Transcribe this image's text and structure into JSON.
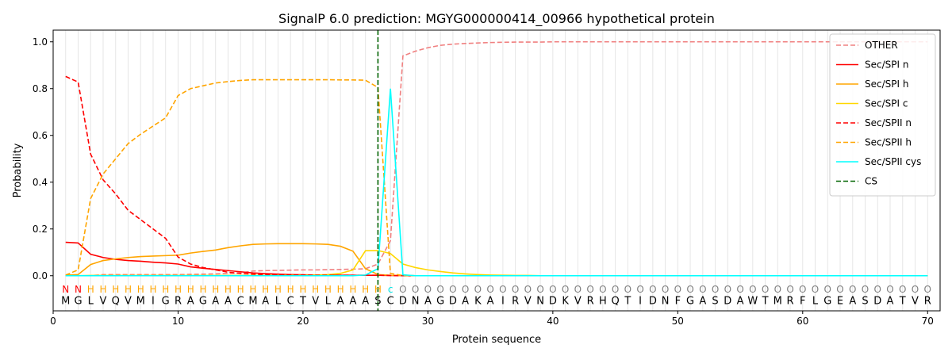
{
  "chart_data": {
    "type": "line",
    "title": "SignalP 6.0 prediction: MGYG000000414_00966 hypothetical protein",
    "xlabel": "Protein sequence",
    "ylabel": "Probability",
    "xlim": [
      0,
      71
    ],
    "ylim": [
      -0.15,
      1.05
    ],
    "x_ticks": [
      0,
      10,
      20,
      30,
      40,
      50,
      60,
      70
    ],
    "y_ticks": [
      0.0,
      0.2,
      0.4,
      0.6,
      0.8,
      1.0
    ],
    "x_tick_labels": [
      "0",
      "10",
      "20",
      "30",
      "40",
      "50",
      "60",
      "70"
    ],
    "y_tick_labels": [
      "0.0",
      "0.2",
      "0.4",
      "0.6",
      "0.8",
      "1.0"
    ],
    "grid": "vertical lines at each residue position",
    "legend_position": "top-right",
    "cleavage_site_x": 26,
    "sequence": "MGLVQVMIGRAGAACMALCTVLAAASCDNAGDAKAIRVNDKVRHQTIDNFGASDAWTMRFLGEASDATVR",
    "region_labels": "NNHHHHHHHHHHHHHHHHHHHHHHHHcOOOOOOOOOOOOOOOOOOOOOOOOOOOOOOOOOOOOOOOOOOOO",
    "region_colors": {
      "N": "#ff0000",
      "H": "#ffa500",
      "c": "#00e5e5",
      "O": "#808080"
    },
    "series": [
      {
        "name": "OTHER",
        "color": "#f08080",
        "dash": "dashed",
        "values": [
          0.0,
          0.0,
          0.0,
          0.005,
          0.005,
          0.005,
          0.005,
          0.005,
          0.005,
          0.005,
          0.006,
          0.007,
          0.008,
          0.01,
          0.012,
          0.02,
          0.022,
          0.023,
          0.024,
          0.025,
          0.025,
          0.026,
          0.027,
          0.028,
          0.03,
          0.05,
          0.15,
          0.94,
          0.96,
          0.975,
          0.985,
          0.99,
          0.993,
          0.995,
          0.997,
          0.998,
          0.999,
          0.999,
          0.999,
          1.0,
          1.0,
          1.0,
          1.0,
          1.0,
          1.0,
          1.0,
          1.0,
          1.0,
          1.0,
          1.0,
          1.0,
          1.0,
          1.0,
          1.0,
          1.0,
          1.0,
          1.0,
          1.0,
          1.0,
          1.0,
          1.0,
          1.0,
          1.0,
          1.0,
          1.0,
          1.0,
          1.0,
          1.0,
          1.0,
          1.0
        ]
      },
      {
        "name": "Sec/SPI n",
        "color": "#ff0000",
        "dash": "solid",
        "values": [
          0.143,
          0.14,
          0.092,
          0.078,
          0.07,
          0.065,
          0.062,
          0.058,
          0.055,
          0.05,
          0.038,
          0.032,
          0.027,
          0.022,
          0.017,
          0.012,
          0.009,
          0.007,
          0.005,
          0.004,
          0.003,
          0.003,
          0.002,
          0.002,
          0.002,
          0.002,
          0.001,
          0.001,
          0.0,
          0.0,
          0.0,
          0.0,
          0.0,
          0.0,
          0.0,
          0.0,
          0.0,
          0.0,
          0.0,
          0.0,
          0.0,
          0.0,
          0.0,
          0.0,
          0.0,
          0.0,
          0.0,
          0.0,
          0.0,
          0.0,
          0.0,
          0.0,
          0.0,
          0.0,
          0.0,
          0.0,
          0.0,
          0.0,
          0.0,
          0.0,
          0.0,
          0.0,
          0.0,
          0.0,
          0.0,
          0.0,
          0.0,
          0.0,
          0.0,
          0.0
        ]
      },
      {
        "name": "Sec/SPI h",
        "color": "#ffa500",
        "dash": "solid",
        "values": [
          0.002,
          0.005,
          0.048,
          0.065,
          0.072,
          0.078,
          0.082,
          0.084,
          0.086,
          0.088,
          0.097,
          0.104,
          0.11,
          0.12,
          0.128,
          0.134,
          0.136,
          0.137,
          0.137,
          0.137,
          0.136,
          0.134,
          0.126,
          0.105,
          0.03,
          0.005,
          0.002,
          0.001,
          0.0,
          0.0,
          0.0,
          0.0,
          0.0,
          0.0,
          0.0,
          0.0,
          0.0,
          0.0,
          0.0,
          0.0,
          0.0,
          0.0,
          0.0,
          0.0,
          0.0,
          0.0,
          0.0,
          0.0,
          0.0,
          0.0,
          0.0,
          0.0,
          0.0,
          0.0,
          0.0,
          0.0,
          0.0,
          0.0,
          0.0,
          0.0,
          0.0,
          0.0,
          0.0,
          0.0,
          0.0,
          0.0,
          0.0,
          0.0,
          0.0,
          0.0
        ]
      },
      {
        "name": "Sec/SPI c",
        "color": "#ffd700",
        "dash": "solid",
        "values": [
          0.0,
          0.0,
          0.001,
          0.001,
          0.001,
          0.001,
          0.001,
          0.001,
          0.001,
          0.001,
          0.001,
          0.001,
          0.001,
          0.001,
          0.001,
          0.001,
          0.001,
          0.002,
          0.002,
          0.002,
          0.003,
          0.005,
          0.01,
          0.025,
          0.107,
          0.108,
          0.095,
          0.05,
          0.035,
          0.025,
          0.018,
          0.012,
          0.008,
          0.005,
          0.003,
          0.002,
          0.001,
          0.001,
          0.0,
          0.0,
          0.0,
          0.0,
          0.0,
          0.0,
          0.0,
          0.0,
          0.0,
          0.0,
          0.0,
          0.0,
          0.0,
          0.0,
          0.0,
          0.0,
          0.0,
          0.0,
          0.0,
          0.0,
          0.0,
          0.0,
          0.0,
          0.0,
          0.0,
          0.0,
          0.0,
          0.0,
          0.0,
          0.0,
          0.0,
          0.0
        ]
      },
      {
        "name": "Sec/SPII n",
        "color": "#ff0000",
        "dash": "dashed",
        "values": [
          0.852,
          0.828,
          0.52,
          0.41,
          0.35,
          0.28,
          0.24,
          0.2,
          0.16,
          0.08,
          0.05,
          0.035,
          0.025,
          0.015,
          0.01,
          0.007,
          0.005,
          0.004,
          0.003,
          0.003,
          0.002,
          0.002,
          0.002,
          0.002,
          0.002,
          0.002,
          0.001,
          0.0,
          0.0,
          0.0,
          0.0,
          0.0,
          0.0,
          0.0,
          0.0,
          0.0,
          0.0,
          0.0,
          0.0,
          0.0,
          0.0,
          0.0,
          0.0,
          0.0,
          0.0,
          0.0,
          0.0,
          0.0,
          0.0,
          0.0,
          0.0,
          0.0,
          0.0,
          0.0,
          0.0,
          0.0,
          0.0,
          0.0,
          0.0,
          0.0,
          0.0,
          0.0,
          0.0,
          0.0,
          0.0,
          0.0,
          0.0,
          0.0,
          0.0,
          0.0
        ]
      },
      {
        "name": "Sec/SPII h",
        "color": "#ffa500",
        "dash": "dashed",
        "values": [
          0.003,
          0.025,
          0.33,
          0.435,
          0.5,
          0.565,
          0.605,
          0.64,
          0.675,
          0.77,
          0.8,
          0.812,
          0.824,
          0.83,
          0.835,
          0.838,
          0.838,
          0.838,
          0.838,
          0.838,
          0.838,
          0.838,
          0.837,
          0.837,
          0.836,
          0.805,
          0.01,
          0.001,
          0.0,
          0.0,
          0.0,
          0.0,
          0.0,
          0.0,
          0.0,
          0.0,
          0.0,
          0.0,
          0.0,
          0.0,
          0.0,
          0.0,
          0.0,
          0.0,
          0.0,
          0.0,
          0.0,
          0.0,
          0.0,
          0.0,
          0.0,
          0.0,
          0.0,
          0.0,
          0.0,
          0.0,
          0.0,
          0.0,
          0.0,
          0.0,
          0.0,
          0.0,
          0.0,
          0.0,
          0.0,
          0.0,
          0.0,
          0.0,
          0.0,
          0.0
        ]
      },
      {
        "name": "Sec/SPII cys",
        "color": "#00ffff",
        "dash": "solid",
        "values": [
          0.0,
          0.0,
          0.0,
          0.0,
          0.0,
          0.0,
          0.0,
          0.0,
          0.0,
          0.0,
          0.0,
          0.0,
          0.0,
          0.0,
          0.0,
          0.0,
          0.0,
          0.0,
          0.0,
          0.0,
          0.0,
          0.0,
          0.0,
          0.0,
          0.003,
          0.03,
          0.8,
          0.004,
          0.0,
          0.0,
          0.0,
          0.0,
          0.0,
          0.0,
          0.0,
          0.0,
          0.0,
          0.0,
          0.0,
          0.0,
          0.0,
          0.0,
          0.0,
          0.0,
          0.0,
          0.0,
          0.0,
          0.0,
          0.0,
          0.0,
          0.0,
          0.0,
          0.0,
          0.0,
          0.0,
          0.0,
          0.0,
          0.0,
          0.0,
          0.0,
          0.0,
          0.0,
          0.0,
          0.0,
          0.0,
          0.0,
          0.0,
          0.0,
          0.0,
          0.0
        ]
      },
      {
        "name": "CS",
        "color": "#006400",
        "dash": "dashed",
        "values": []
      }
    ]
  }
}
